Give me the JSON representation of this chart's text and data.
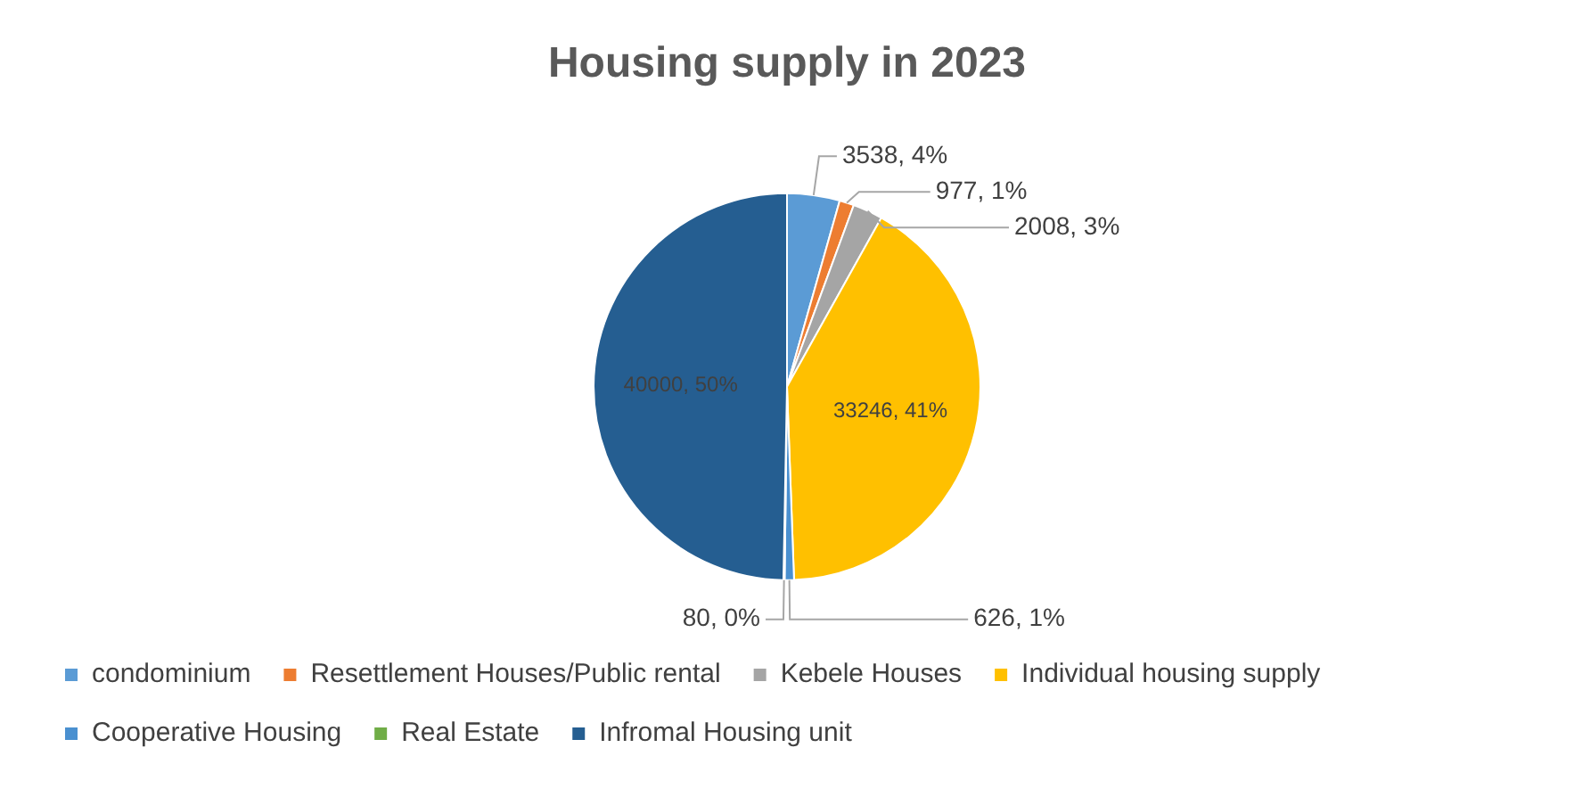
{
  "chart_data": {
    "type": "pie",
    "title": "Housing supply in 2023",
    "categories": [
      "condominium",
      "Resettlement Houses/Public rental",
      "Kebele Houses",
      "Individual housing supply",
      "Cooperative Housing",
      "Real Estate",
      "Infromal Housing unit"
    ],
    "values": [
      3538,
      977,
      2008,
      33246,
      626,
      80,
      40000
    ],
    "value_labels": [
      "3538, 4%",
      "977, 1%",
      "2008, 3%",
      "33246, 41%",
      "626, 1%",
      "80, 0%",
      "40000, 50%"
    ],
    "colors": [
      "#5b9bd5",
      "#ed7d31",
      "#a5a5a5",
      "#ffc000",
      "#4a90d0",
      "#70ad47",
      "#255e91"
    ],
    "legend": "bottom"
  }
}
